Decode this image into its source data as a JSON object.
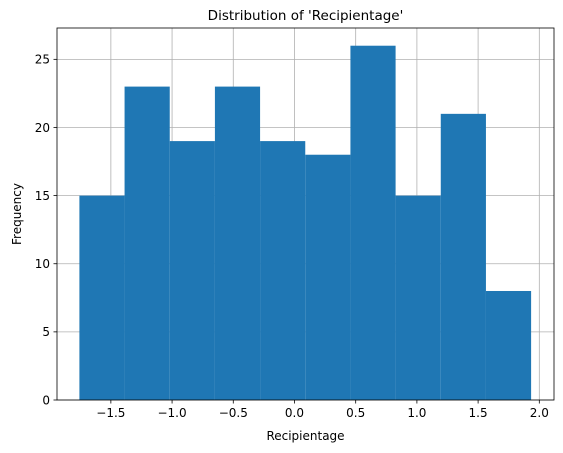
{
  "chart_data": {
    "type": "bar",
    "title": "Distribution of 'Recipientage'",
    "xlabel": "Recipientage",
    "ylabel": "Frequency",
    "bin_edges": [
      -1.757,
      -1.388,
      -1.019,
      -0.65,
      -0.281,
      0.088,
      0.457,
      0.826,
      1.195,
      1.564,
      1.933
    ],
    "values": [
      15,
      23,
      19,
      23,
      19,
      18,
      26,
      15,
      21,
      8
    ],
    "xlim": [
      -1.94,
      2.12
    ],
    "ylim": [
      0,
      27.3
    ],
    "xticks": [
      -1.5,
      -1.0,
      -0.5,
      0.0,
      0.5,
      1.0,
      1.5,
      2.0
    ],
    "xtick_labels": [
      "−1.5",
      "−1.0",
      "−0.5",
      "0.0",
      "0.5",
      "1.0",
      "1.5",
      "2.0"
    ],
    "yticks": [
      0,
      5,
      10,
      15,
      20,
      25
    ],
    "ytick_labels": [
      "0",
      "5",
      "10",
      "15",
      "20",
      "25"
    ],
    "grid": true,
    "bar_color": "#1f77b4",
    "grid_color": "#b0b0b0"
  }
}
